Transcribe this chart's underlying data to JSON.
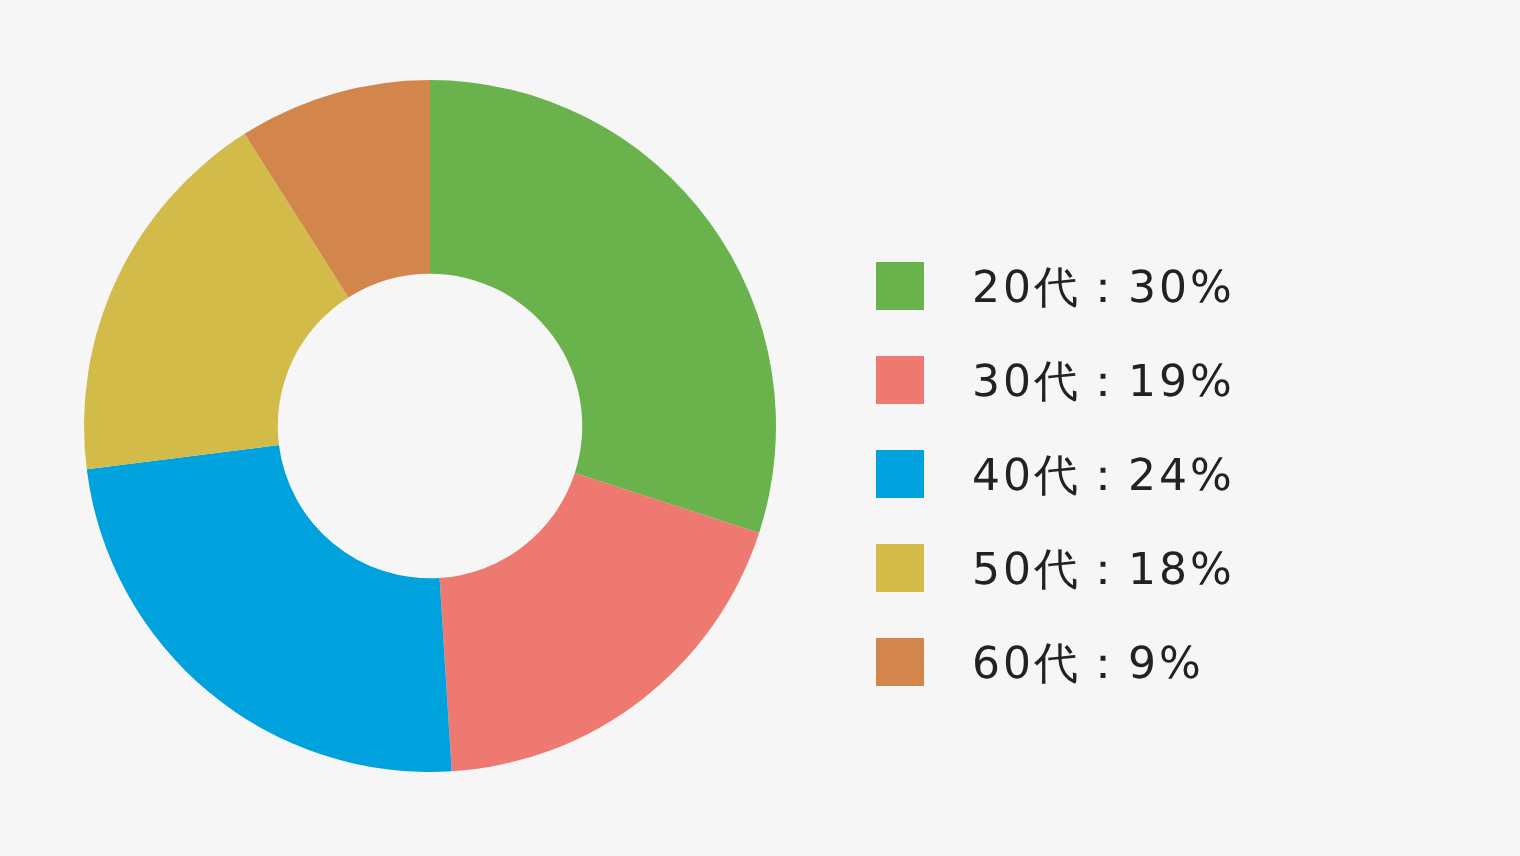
{
  "chart_data": {
    "type": "donut",
    "categories": [
      "20代：30%",
      "30代：19%",
      "40代：24%",
      "50代：18%",
      "60代：9%"
    ],
    "values": [
      30,
      19,
      24,
      18,
      9
    ],
    "colors": [
      "#6ab24c",
      "#ee7970",
      "#00a2de",
      "#d3bb4a",
      "#d3864b"
    ],
    "legend": "right"
  }
}
